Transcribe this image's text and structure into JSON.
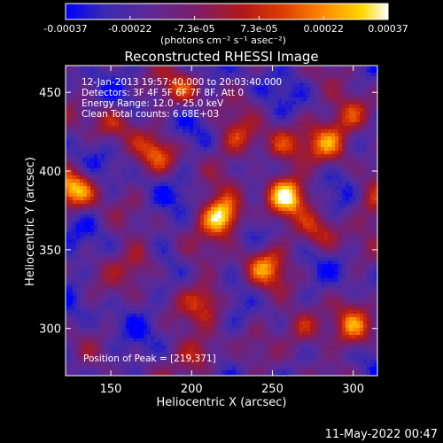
{
  "chart_data": {
    "type": "heatmap",
    "title": "Reconstructed RHESSI Image",
    "xlabel": "Heliocentric X (arcsec)",
    "ylabel": "Heliocentric Y (arcsec)",
    "xlim": [
      122,
      315
    ],
    "ylim": [
      270,
      467
    ],
    "x_ticks": [
      150,
      200,
      250,
      300
    ],
    "x_tick_labels": [
      "150",
      "200",
      "250",
      "300"
    ],
    "y_ticks": [
      300,
      350,
      400,
      450
    ],
    "y_tick_labels": [
      "300",
      "350",
      "400",
      "450"
    ],
    "colorbar": {
      "min": -0.00037,
      "max": 0.00037,
      "tick_labels": [
        "-0.00037",
        "-0.00022",
        "-7.3e-05",
        "7.3e-05",
        "0.00022",
        "0.00037"
      ],
      "unit_label": "(photons cm⁻² s⁻¹ asec⁻²)",
      "colors": [
        "#0000ff",
        "#3a2ab0",
        "#5a2a9a",
        "#7a1e6a",
        "#b01818",
        "#e04000",
        "#ff8a00",
        "#ffd800",
        "#ffffff"
      ]
    },
    "annotations": [
      "12-Jan-2013 19:57:40.000 to 20:03:40.000",
      "Detectors: 3F 4F 5F 6F 7F 8F, Att 0",
      "Energy Range: 12.0 - 25.0 keV",
      "Clean    Total counts: 6.68E+03"
    ],
    "peak_label": "Position of Peak = [219,371]",
    "sources": [
      {
        "x": 219,
        "y": 371,
        "amp": 1.0
      },
      {
        "x": 258,
        "y": 385,
        "amp": 0.85
      },
      {
        "x": 128,
        "y": 388,
        "amp": 0.8
      },
      {
        "x": 300,
        "y": 435,
        "amp": 0.65
      },
      {
        "x": 285,
        "y": 418,
        "amp": 0.55
      },
      {
        "x": 245,
        "y": 340,
        "amp": 0.6
      },
      {
        "x": 210,
        "y": 318,
        "amp": 0.55
      },
      {
        "x": 168,
        "y": 342,
        "amp": 0.5
      },
      {
        "x": 180,
        "y": 410,
        "amp": 0.5
      },
      {
        "x": 195,
        "y": 452,
        "amp": 0.45
      },
      {
        "x": 270,
        "y": 300,
        "amp": 0.6
      },
      {
        "x": 300,
        "y": 300,
        "amp": 0.5
      },
      {
        "x": 205,
        "y": 282,
        "amp": 0.55
      },
      {
        "x": 255,
        "y": 415,
        "amp": 0.5
      },
      {
        "x": 150,
        "y": 430,
        "amp": 0.4
      },
      {
        "x": 230,
        "y": 420,
        "amp": 0.45
      },
      {
        "x": 312,
        "y": 380,
        "amp": 0.4
      },
      {
        "x": 280,
        "y": 360,
        "amp": 0.45
      }
    ]
  },
  "footer": {
    "timestamp": "11-May-2022 00:47"
  }
}
